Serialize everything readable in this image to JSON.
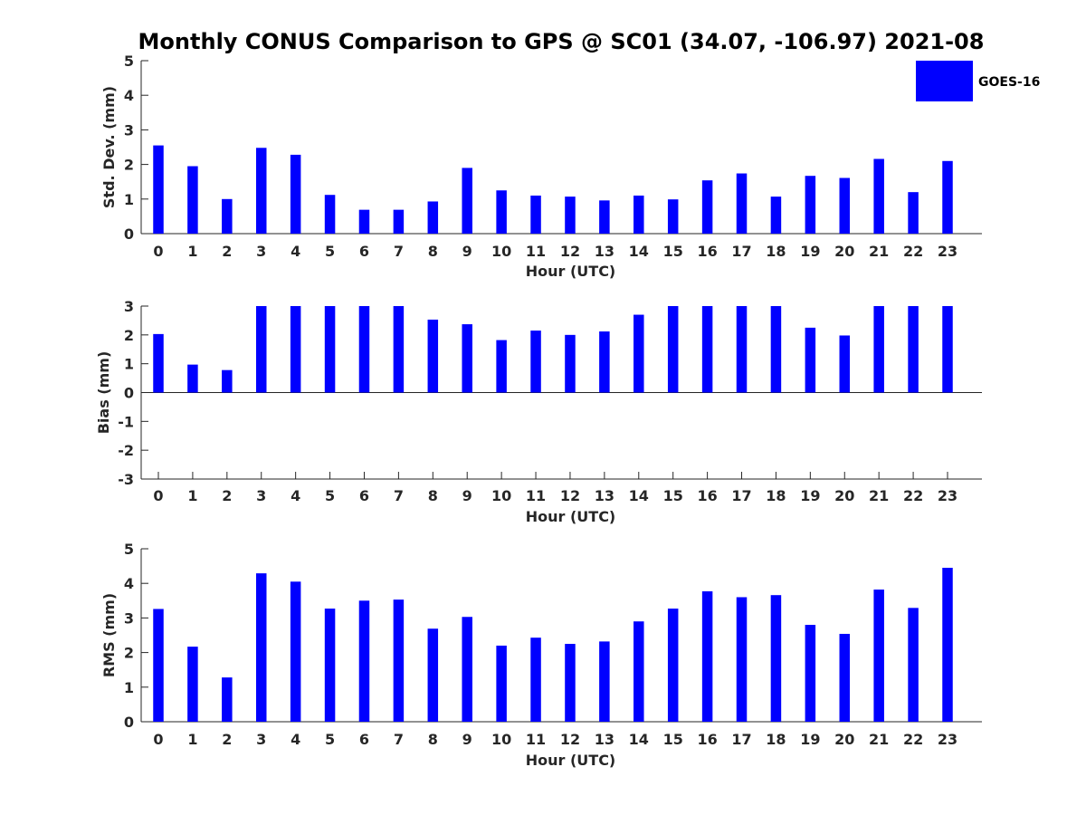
{
  "chart_data": [
    {
      "type": "bar",
      "id": "std",
      "title": "Monthly CONUS Comparison to GPS @ SC01 (34.07, -106.97) 2021-08",
      "xlabel": "Hour (UTC)",
      "ylabel": "Std. Dev. (mm)",
      "ylim": [
        0,
        5
      ],
      "yticks": [
        0,
        1,
        2,
        3,
        4,
        5
      ],
      "grid": false,
      "legend_position": "top-right",
      "categories": [
        "0",
        "1",
        "2",
        "3",
        "4",
        "5",
        "6",
        "7",
        "8",
        "9",
        "10",
        "11",
        "12",
        "13",
        "14",
        "15",
        "16",
        "17",
        "18",
        "19",
        "20",
        "21",
        "22",
        "23"
      ],
      "series": [
        {
          "name": "GOES-16",
          "color": "#0000ff",
          "values": [
            2.55,
            1.95,
            1.0,
            2.48,
            2.28,
            1.12,
            0.69,
            0.69,
            0.93,
            1.9,
            1.25,
            1.1,
            1.07,
            0.96,
            1.1,
            0.99,
            1.54,
            1.74,
            1.07,
            1.67,
            1.61,
            2.16,
            1.2,
            2.1
          ]
        }
      ]
    },
    {
      "type": "bar",
      "id": "bias",
      "xlabel": "Hour (UTC)",
      "ylabel": "Bias (mm)",
      "ylim": [
        -3,
        3
      ],
      "yticks": [
        -3,
        -2,
        -1,
        0,
        1,
        2,
        3
      ],
      "grid": false,
      "categories": [
        "0",
        "1",
        "2",
        "3",
        "4",
        "5",
        "6",
        "7",
        "8",
        "9",
        "10",
        "11",
        "12",
        "13",
        "14",
        "15",
        "16",
        "17",
        "18",
        "19",
        "20",
        "21",
        "22",
        "23"
      ],
      "series": [
        {
          "name": "GOES-16",
          "color": "#0000ff",
          "values": [
            2.03,
            0.97,
            0.78,
            3.0,
            3.0,
            3.0,
            3.0,
            3.0,
            2.53,
            2.37,
            1.82,
            2.15,
            2.0,
            2.12,
            2.7,
            3.0,
            3.0,
            3.0,
            3.0,
            2.25,
            1.98,
            3.0,
            3.0,
            3.0
          ]
        }
      ]
    },
    {
      "type": "bar",
      "id": "rms",
      "xlabel": "Hour (UTC)",
      "ylabel": "RMS (mm)",
      "ylim": [
        0,
        5
      ],
      "yticks": [
        0,
        1,
        2,
        3,
        4,
        5
      ],
      "grid": false,
      "categories": [
        "0",
        "1",
        "2",
        "3",
        "4",
        "5",
        "6",
        "7",
        "8",
        "9",
        "10",
        "11",
        "12",
        "13",
        "14",
        "15",
        "16",
        "17",
        "18",
        "19",
        "20",
        "21",
        "22",
        "23"
      ],
      "series": [
        {
          "name": "GOES-16",
          "color": "#0000ff",
          "values": [
            3.26,
            2.17,
            1.28,
            4.29,
            4.05,
            3.27,
            3.5,
            3.53,
            2.69,
            3.03,
            2.2,
            2.43,
            2.25,
            2.32,
            2.9,
            3.27,
            3.77,
            3.6,
            3.66,
            2.8,
            2.54,
            3.82,
            3.29,
            4.45
          ]
        }
      ]
    }
  ],
  "legend": {
    "label": "GOES-16",
    "color": "#0000ff"
  }
}
